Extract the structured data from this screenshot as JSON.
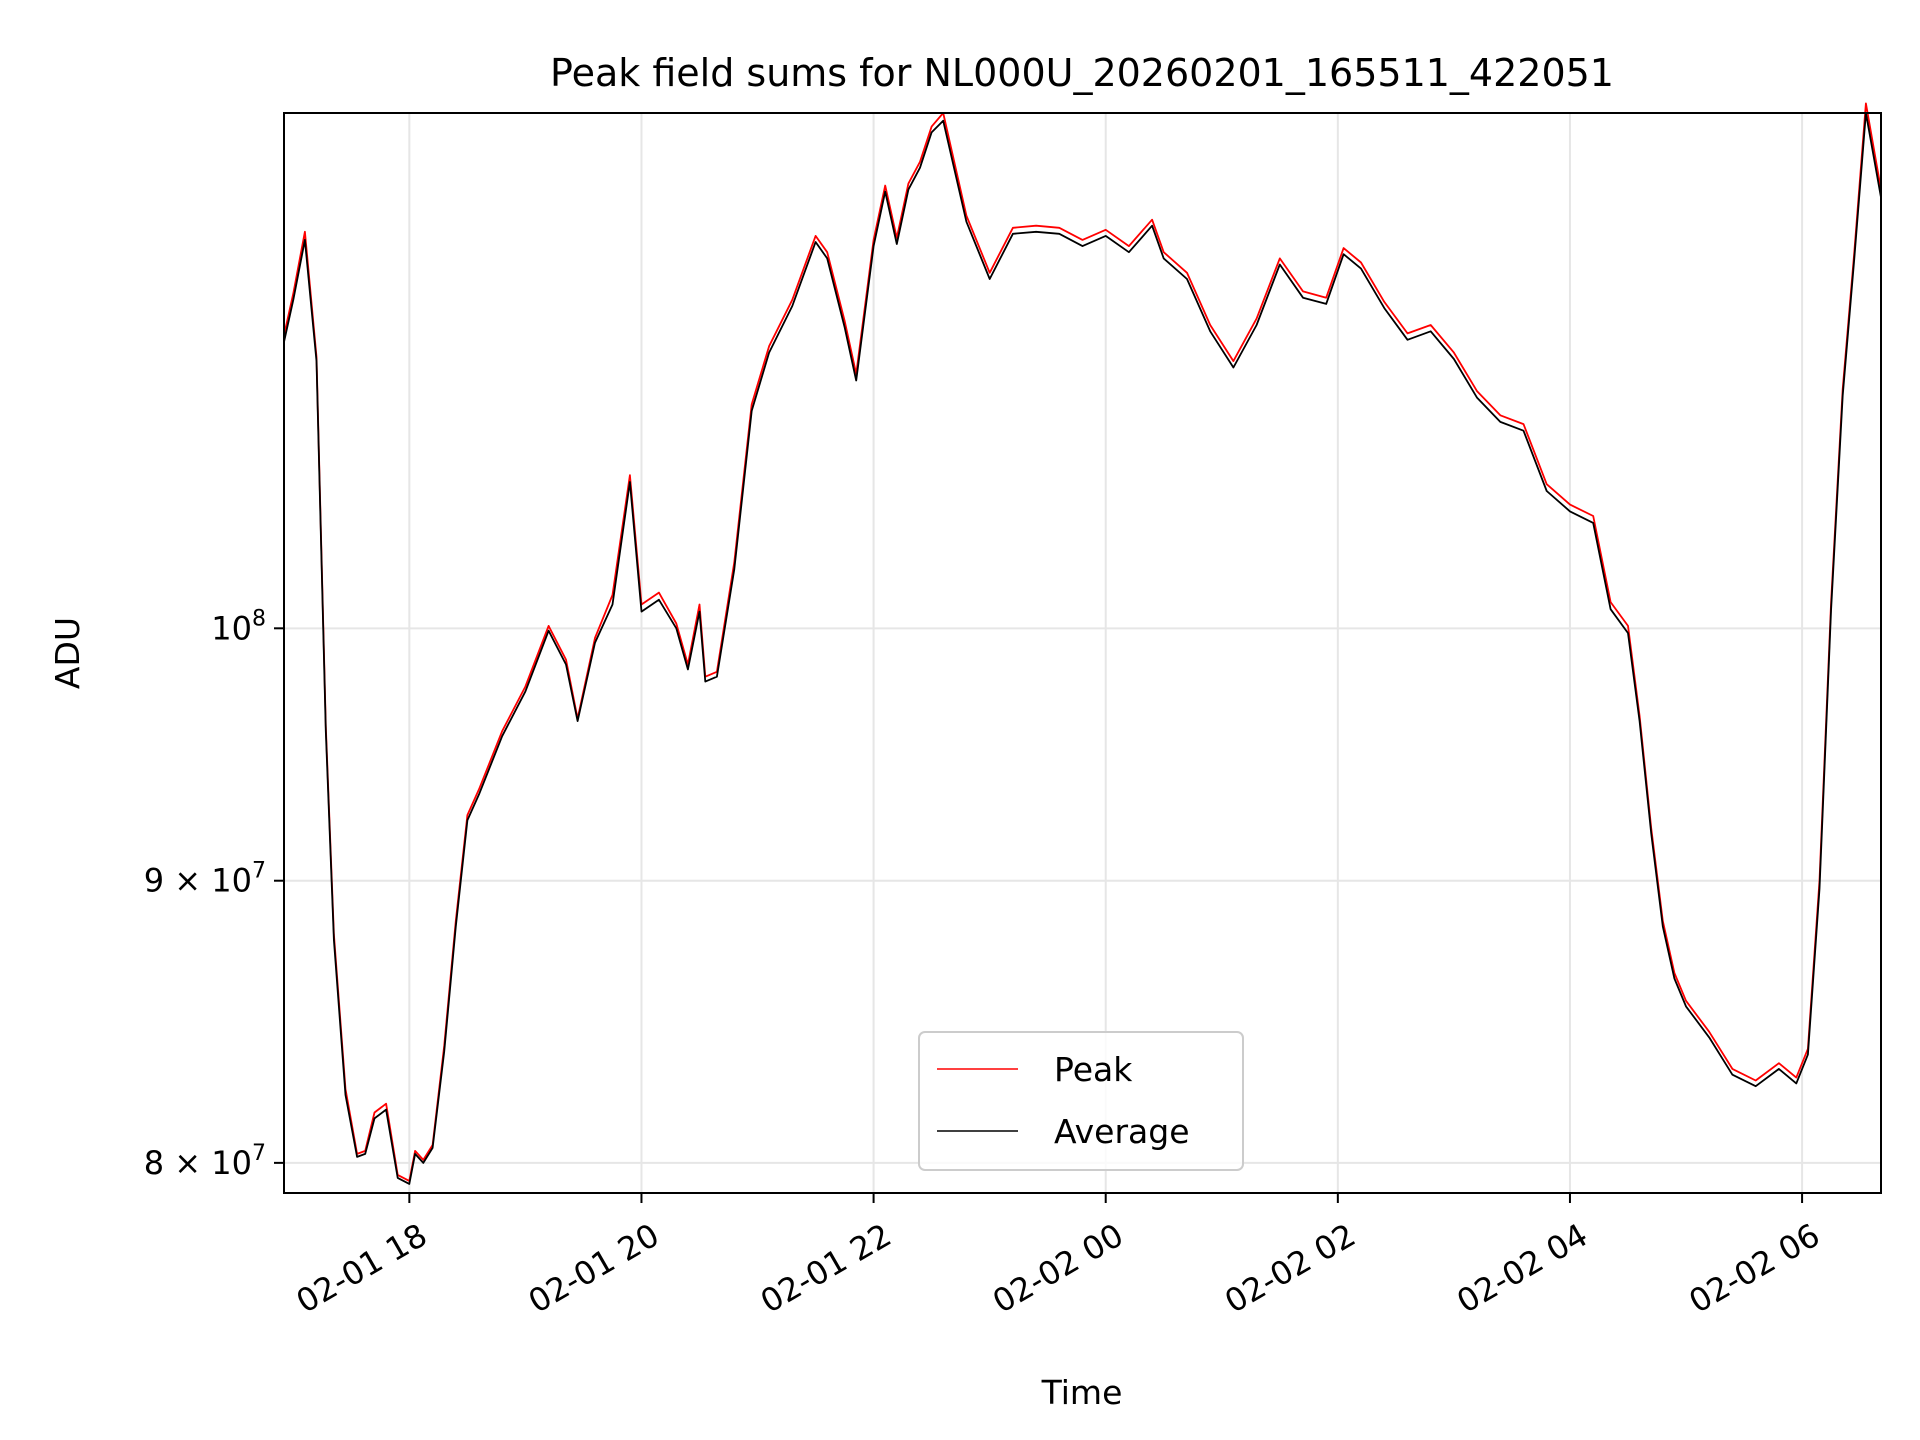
{
  "chart_data": {
    "type": "line",
    "title": "Peak field sums for NL000U_20260201_165511_422051",
    "xlabel": "Time",
    "ylabel": "ADU",
    "yscale": "log",
    "x_unit": "hours since 2026-02-01 00:00",
    "xlim": [
      16.92,
      30.68
    ],
    "ylim": [
      79000000,
      124000000
    ],
    "grid": true,
    "legend_position": "lower center",
    "x_ticks": [
      {
        "value": 18,
        "label": "02-01 18"
      },
      {
        "value": 20,
        "label": "02-01 20"
      },
      {
        "value": 22,
        "label": "02-01 22"
      },
      {
        "value": 24,
        "label": "02-02 00"
      },
      {
        "value": 26,
        "label": "02-02 02"
      },
      {
        "value": 28,
        "label": "02-02 04"
      },
      {
        "value": 30,
        "label": "02-02 06"
      }
    ],
    "y_ticks": [
      {
        "value": 80000000,
        "base": "8 × 10",
        "exp": "7"
      },
      {
        "value": 90000000,
        "base": "9 × 10",
        "exp": "7"
      },
      {
        "value": 100000000,
        "base": "10",
        "exp": "8"
      }
    ],
    "x": [
      16.92,
      17.0,
      17.1,
      17.2,
      17.28,
      17.35,
      17.45,
      17.55,
      17.62,
      17.7,
      17.8,
      17.9,
      18.0,
      18.05,
      18.12,
      18.2,
      18.3,
      18.4,
      18.5,
      18.6,
      18.8,
      19.0,
      19.2,
      19.35,
      19.45,
      19.6,
      19.75,
      19.9,
      20.0,
      20.15,
      20.3,
      20.4,
      20.5,
      20.55,
      20.65,
      20.8,
      20.95,
      21.1,
      21.3,
      21.5,
      21.6,
      21.75,
      21.85,
      22.0,
      22.1,
      22.2,
      22.3,
      22.4,
      22.5,
      22.6,
      22.8,
      23.0,
      23.2,
      23.4,
      23.6,
      23.8,
      24.0,
      24.2,
      24.4,
      24.5,
      24.7,
      24.9,
      25.1,
      25.3,
      25.5,
      25.7,
      25.9,
      26.05,
      26.2,
      26.4,
      26.6,
      26.8,
      27.0,
      27.2,
      27.4,
      27.6,
      27.8,
      28.0,
      28.2,
      28.35,
      28.5,
      28.6,
      28.7,
      28.8,
      28.9,
      29.0,
      29.2,
      29.4,
      29.6,
      29.8,
      29.95,
      30.05,
      30.15,
      30.25,
      30.35,
      30.45,
      30.55,
      30.68
    ],
    "series": [
      {
        "name": "Peak",
        "color": "#ff0000",
        "values": [
          113000000,
          115000000,
          118000000,
          112000000,
          96000000,
          88000000,
          82500000,
          80300000,
          80400000,
          81700000,
          82000000,
          79600000,
          79400000,
          80400000,
          80100000,
          80600000,
          84000000,
          88500000,
          92500000,
          93500000,
          95800000,
          97600000,
          100100000,
          98700000,
          96300000,
          99600000,
          101400000,
          106600000,
          101000000,
          101500000,
          100200000,
          98500000,
          101000000,
          98000000,
          98200000,
          102800000,
          109800000,
          112500000,
          114700000,
          117800000,
          117000000,
          113700000,
          111200000,
          117600000,
          120300000,
          117700000,
          120400000,
          121500000,
          123300000,
          124000000,
          118800000,
          116000000,
          118200000,
          118300000,
          118200000,
          117600000,
          118100000,
          117300000,
          118600000,
          117000000,
          116000000,
          113500000,
          111800000,
          113800000,
          116700000,
          115100000,
          114800000,
          117200000,
          116500000,
          114600000,
          113100000,
          113500000,
          112200000,
          110400000,
          109300000,
          108900000,
          106200000,
          105300000,
          104800000,
          101100000,
          100100000,
          96400000,
          92000000,
          88500000,
          86600000,
          85600000,
          84500000,
          83200000,
          82800000,
          83400000,
          82900000,
          83900000,
          90000000,
          101100000,
          110500000,
          117000000,
          124500000,
          120100000
        ]
      },
      {
        "name": "Average",
        "color": "#000000",
        "values": [
          112700000,
          114700000,
          117600000,
          111800000,
          95800000,
          87800000,
          82300000,
          80200000,
          80300000,
          81500000,
          81800000,
          79500000,
          79300000,
          80300000,
          80000000,
          80500000,
          83800000,
          88300000,
          92300000,
          93300000,
          95600000,
          97400000,
          99900000,
          98500000,
          96200000,
          99400000,
          101000000,
          106300000,
          100700000,
          101200000,
          100000000,
          98300000,
          100700000,
          97800000,
          98000000,
          102500000,
          109500000,
          112200000,
          114400000,
          117500000,
          116700000,
          113400000,
          110900000,
          117300000,
          120000000,
          117400000,
          120100000,
          121200000,
          123000000,
          123600000,
          118500000,
          115700000,
          117900000,
          118000000,
          117900000,
          117300000,
          117800000,
          117000000,
          118300000,
          116700000,
          115700000,
          113200000,
          111500000,
          113500000,
          116400000,
          114800000,
          114500000,
          116900000,
          116200000,
          114300000,
          112800000,
          113200000,
          111900000,
          110100000,
          109000000,
          108600000,
          105900000,
          105000000,
          104500000,
          100800000,
          99800000,
          96200000,
          91800000,
          88300000,
          86400000,
          85400000,
          84300000,
          83000000,
          82600000,
          83200000,
          82700000,
          83700000,
          89700000,
          100800000,
          110200000,
          116700000,
          124000000,
          119700000
        ]
      }
    ]
  }
}
